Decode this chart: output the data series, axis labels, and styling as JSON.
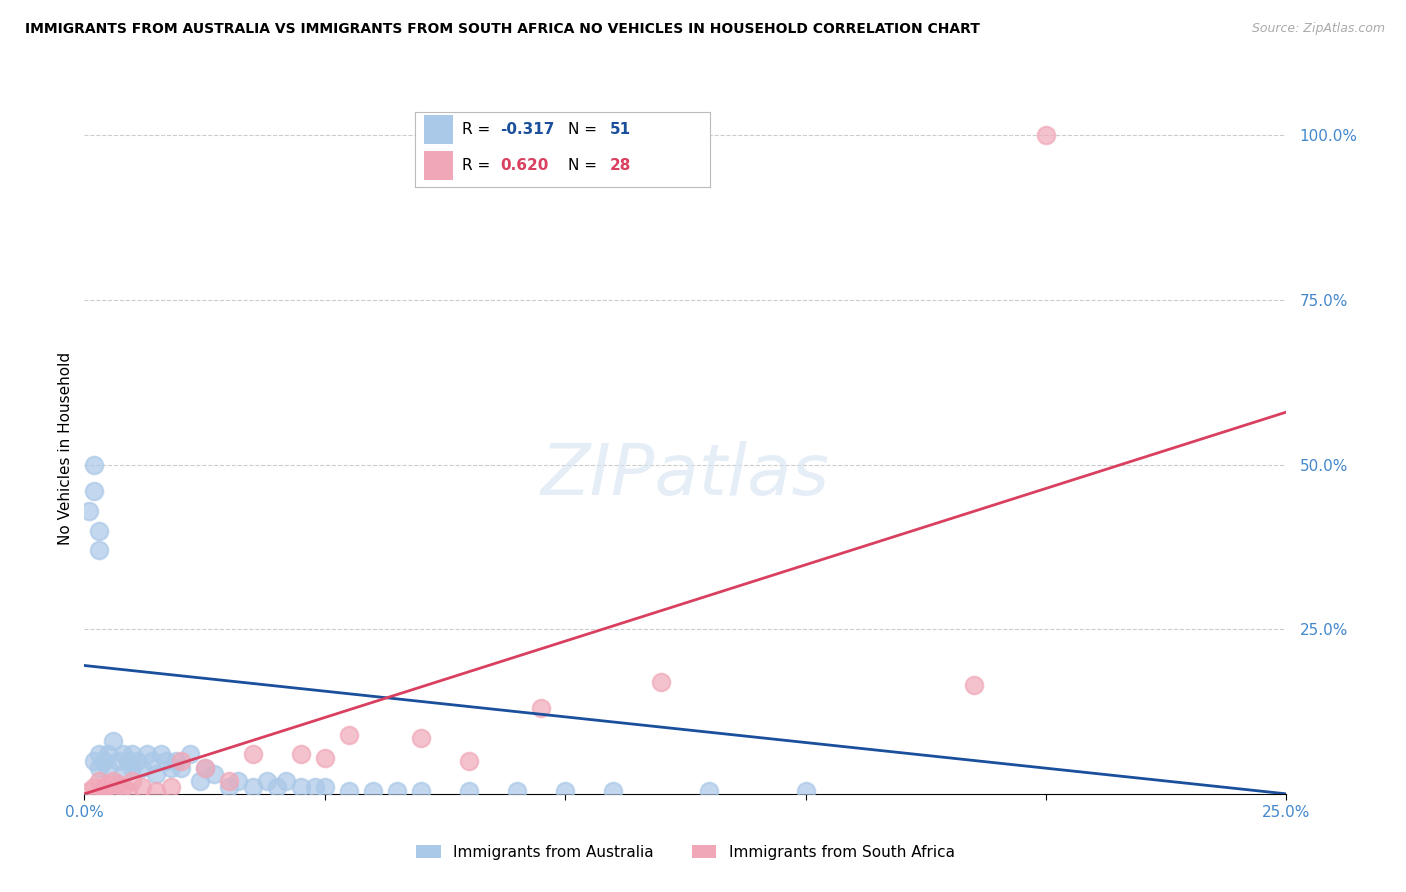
{
  "title": "IMMIGRANTS FROM AUSTRALIA VS IMMIGRANTS FROM SOUTH AFRICA NO VEHICLES IN HOUSEHOLD CORRELATION CHART",
  "source": "Source: ZipAtlas.com",
  "ylabel": "No Vehicles in Household",
  "xlim": [
    0.0,
    0.25
  ],
  "ylim": [
    0.0,
    1.05
  ],
  "ytick_vals": [
    0.0,
    0.25,
    0.5,
    0.75,
    1.0
  ],
  "ytick_labels": [
    "",
    "25.0%",
    "50.0%",
    "75.0%",
    "100.0%"
  ],
  "xtick_vals": [
    0.0,
    0.05,
    0.1,
    0.15,
    0.2,
    0.25
  ],
  "xtick_labels": [
    "0.0%",
    "",
    "",
    "",
    "",
    "25.0%"
  ],
  "legend_R_aus": "-0.317",
  "legend_N_aus": "51",
  "legend_R_sa": "0.620",
  "legend_N_sa": "28",
  "color_aus": "#aac8e8",
  "color_sa": "#f0a8b8",
  "line_color_aus": "#1a4f9c",
  "line_color_sa": "#d94060",
  "grid_color": "#cccccc",
  "tick_label_color": "#4488cc",
  "aus_x": [
    0.002,
    0.003,
    0.003,
    0.004,
    0.005,
    0.005,
    0.006,
    0.007,
    0.008,
    0.008,
    0.009,
    0.01,
    0.01,
    0.011,
    0.012,
    0.013,
    0.014,
    0.015,
    0.016,
    0.017,
    0.018,
    0.019,
    0.02,
    0.022,
    0.024,
    0.025,
    0.027,
    0.03,
    0.032,
    0.035,
    0.038,
    0.04,
    0.042,
    0.045,
    0.048,
    0.05,
    0.055,
    0.06,
    0.065,
    0.07,
    0.08,
    0.09,
    0.1,
    0.11,
    0.13,
    0.15,
    0.001,
    0.002,
    0.002,
    0.003,
    0.003
  ],
  "aus_y": [
    0.05,
    0.06,
    0.04,
    0.05,
    0.06,
    0.04,
    0.08,
    0.05,
    0.03,
    0.06,
    0.05,
    0.04,
    0.06,
    0.05,
    0.04,
    0.06,
    0.05,
    0.03,
    0.06,
    0.05,
    0.04,
    0.05,
    0.04,
    0.06,
    0.02,
    0.04,
    0.03,
    0.01,
    0.02,
    0.01,
    0.02,
    0.01,
    0.02,
    0.01,
    0.01,
    0.01,
    0.005,
    0.005,
    0.005,
    0.005,
    0.005,
    0.005,
    0.005,
    0.005,
    0.005,
    0.005,
    0.43,
    0.46,
    0.5,
    0.4,
    0.37
  ],
  "sa_x": [
    0.001,
    0.002,
    0.003,
    0.004,
    0.004,
    0.005,
    0.005,
    0.006,
    0.007,
    0.008,
    0.009,
    0.01,
    0.012,
    0.015,
    0.018,
    0.02,
    0.025,
    0.03,
    0.035,
    0.045,
    0.05,
    0.055,
    0.07,
    0.08,
    0.095,
    0.12,
    0.185,
    0.2
  ],
  "sa_y": [
    0.005,
    0.01,
    0.02,
    0.01,
    0.005,
    0.015,
    0.005,
    0.02,
    0.015,
    0.01,
    0.005,
    0.02,
    0.01,
    0.005,
    0.01,
    0.05,
    0.04,
    0.02,
    0.06,
    0.06,
    0.055,
    0.09,
    0.085,
    0.05,
    0.13,
    0.17,
    0.165,
    1.0
  ],
  "aus_regline_x": [
    0.0,
    0.25
  ],
  "aus_regline_y": [
    0.195,
    0.0
  ],
  "sa_regline_x": [
    0.0,
    0.25
  ],
  "sa_regline_y": [
    0.0,
    0.58
  ]
}
